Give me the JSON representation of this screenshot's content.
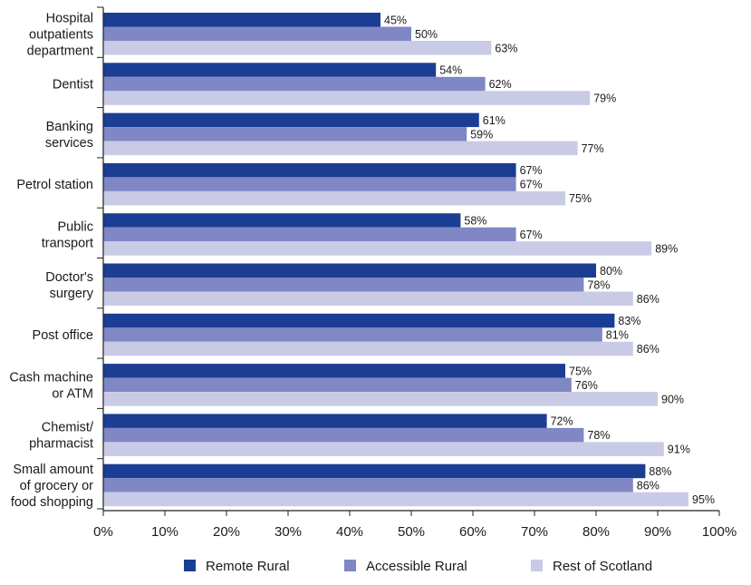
{
  "chart_data": {
    "type": "bar",
    "orientation": "horizontal",
    "categories": [
      [
        "Hospital",
        "outpatients",
        "department"
      ],
      [
        "Dentist"
      ],
      [
        "Banking",
        "services"
      ],
      [
        "Petrol station"
      ],
      [
        "Public",
        "transport"
      ],
      [
        "Doctor's",
        "surgery"
      ],
      [
        "Post office"
      ],
      [
        "Cash machine",
        "or ATM"
      ],
      [
        "Chemist/",
        "pharmacist"
      ],
      [
        "Small amount",
        "of grocery or",
        "food shopping"
      ]
    ],
    "series": [
      {
        "name": "Remote Rural",
        "color": "#1b3d94",
        "values": [
          45,
          54,
          61,
          67,
          58,
          80,
          83,
          75,
          72,
          88
        ]
      },
      {
        "name": "Accessible Rural",
        "color": "#7f87c4",
        "values": [
          50,
          62,
          59,
          67,
          67,
          78,
          81,
          76,
          78,
          86
        ]
      },
      {
        "name": "Rest of Scotland",
        "color": "#c9cbe6",
        "values": [
          63,
          79,
          77,
          75,
          89,
          86,
          86,
          90,
          91,
          95
        ]
      }
    ],
    "value_suffix": "%",
    "xlim": [
      0,
      100
    ],
    "xticks": [
      "0%",
      "10%",
      "20%",
      "30%",
      "40%",
      "50%",
      "60%",
      "70%",
      "80%",
      "90%",
      "100%"
    ],
    "xticks_values": [
      0,
      10,
      20,
      30,
      40,
      50,
      60,
      70,
      80,
      90,
      100
    ],
    "grid": false,
    "legend_position": "bottom"
  }
}
